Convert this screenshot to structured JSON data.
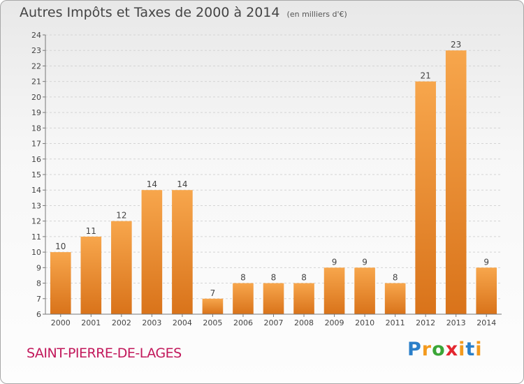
{
  "title": "Autres Impôts et Taxes de 2000 à 2014",
  "unit": "(en milliers d'€)",
  "commune": "SAINT-PIERRE-DE-LAGES",
  "logo": {
    "p1": "P",
    "p2": "r",
    "p3": "o",
    "p4": "x",
    "p5": "i",
    "p6": "t",
    "p7": "i"
  },
  "chart_data": {
    "type": "bar",
    "title": "Autres Impôts et Taxes de 2000 à 2014",
    "subtitle": "(en milliers d'€)",
    "categories": [
      "2000",
      "2001",
      "2002",
      "2003",
      "2004",
      "2005",
      "2006",
      "2007",
      "2008",
      "2009",
      "2010",
      "2011",
      "2012",
      "2013",
      "2014"
    ],
    "values": [
      10,
      11,
      12,
      14,
      14,
      7,
      8,
      8,
      8,
      9,
      9,
      8,
      21,
      23,
      9
    ],
    "ylim": [
      6,
      24
    ],
    "yticks": [
      6,
      7,
      8,
      9,
      10,
      11,
      12,
      13,
      14,
      15,
      16,
      17,
      18,
      19,
      20,
      21,
      22,
      23,
      24
    ],
    "grid": true,
    "bar_color": "#f0922f"
  }
}
